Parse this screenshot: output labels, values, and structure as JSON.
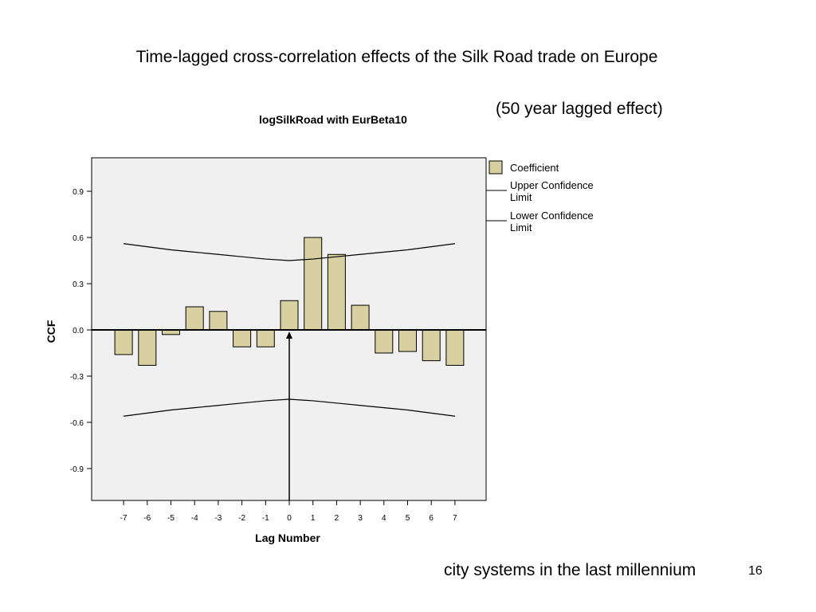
{
  "slide": {
    "title": "Time-lagged cross-correlation effects of the Silk Road trade on Europe",
    "lag_note": "(50 year lagged effect)",
    "footer": "city systems in the last millennium",
    "page_number": "16"
  },
  "chart_data": {
    "type": "bar",
    "title": "logSilkRoad with EurBeta10",
    "xlabel": "Lag Number",
    "ylabel": "CCF",
    "categories": [
      "-7",
      "-6",
      "-5",
      "-4",
      "-3",
      "-2",
      "-1",
      "0",
      "1",
      "2",
      "3",
      "4",
      "5",
      "6",
      "7"
    ],
    "values": [
      -0.16,
      -0.23,
      -0.03,
      0.15,
      0.12,
      -0.11,
      -0.11,
      0.19,
      0.6,
      0.49,
      0.16,
      -0.15,
      -0.14,
      -0.2,
      -0.23
    ],
    "upper_confidence_limit": [
      0.56,
      0.54,
      0.52,
      0.505,
      0.49,
      0.475,
      0.46,
      0.45,
      0.46,
      0.475,
      0.49,
      0.505,
      0.52,
      0.54,
      0.56
    ],
    "lower_confidence_limit": [
      -0.56,
      -0.54,
      -0.52,
      -0.505,
      -0.49,
      -0.475,
      -0.46,
      -0.45,
      -0.46,
      -0.475,
      -0.49,
      -0.505,
      -0.52,
      -0.54,
      -0.56
    ],
    "ylim": [
      -1.1,
      1.1
    ],
    "yticks": [
      "0.9",
      "0.6",
      "0.3",
      "0.0",
      "-0.3",
      "-0.6",
      "-0.9"
    ],
    "legend": {
      "position": "right",
      "entries": [
        {
          "label": "Coefficient",
          "kind": "bar"
        },
        {
          "label": "Upper Confidence Limit",
          "kind": "line"
        },
        {
          "label": "Lower Confidence Limit",
          "kind": "line"
        }
      ]
    },
    "annotation": "arrow at lag 0",
    "colors": {
      "bar_fill": "#d8d0a0",
      "plot_bg": "#f0f0f0",
      "line": "#000000"
    }
  }
}
